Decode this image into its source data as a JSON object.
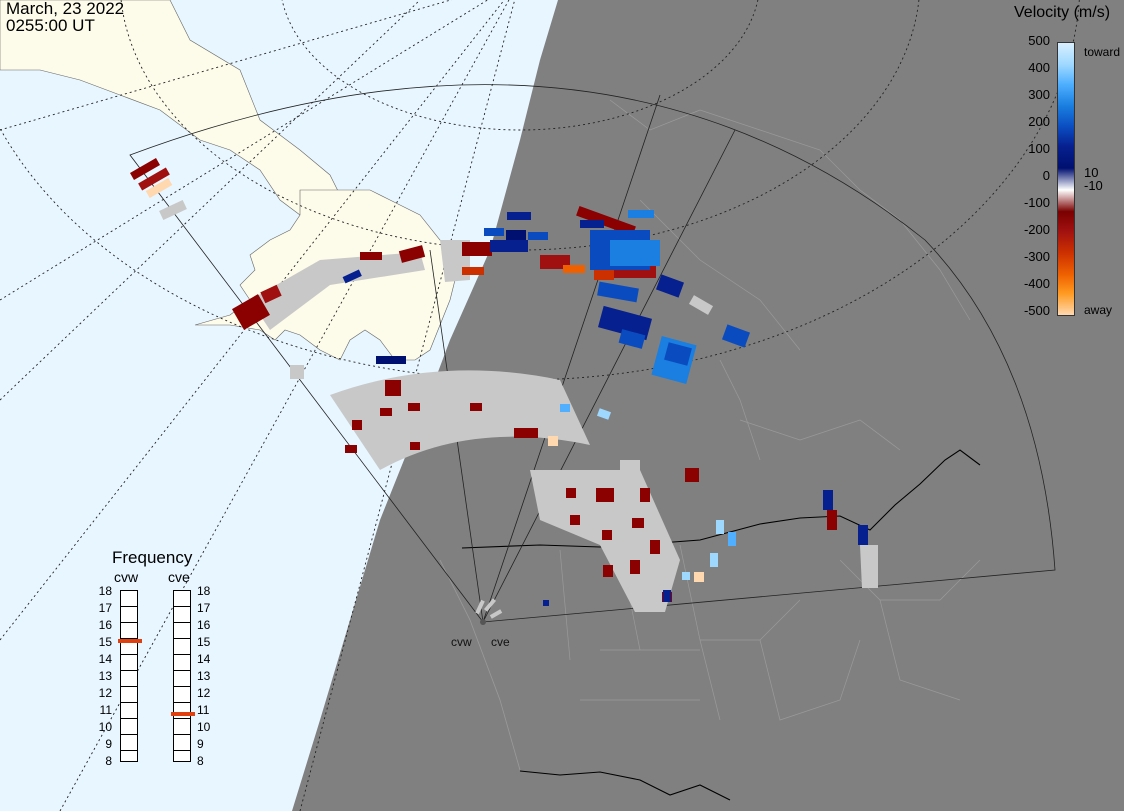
{
  "header": {
    "date": "March, 23 2022",
    "time": "0255:00 UT"
  },
  "legend": {
    "title": "Velocity (m/s)",
    "ticks": [
      "500",
      "400",
      "300",
      "200",
      "100",
      "10",
      "0",
      "-10",
      "-100",
      "-200",
      "-300",
      "-400",
      "-500"
    ],
    "toward_label": "toward",
    "away_label": "away",
    "colors": [
      "#d8f0ff",
      "#9ed8ff",
      "#50b0ff",
      "#1a7fe0",
      "#0a4cc0",
      "#06208f",
      "#001070",
      "#ffffff",
      "#7a0000",
      "#a01010",
      "#cc3000",
      "#ee6000",
      "#ff9a20",
      "#ffd8b0"
    ]
  },
  "frequency": {
    "title": "Frequency",
    "stations": [
      {
        "label": "cvw",
        "value": 15
      },
      {
        "label": "cve",
        "value": 10.7
      }
    ],
    "scale": [
      "18",
      "17",
      "16",
      "15",
      "14",
      "13",
      "12",
      "11",
      "10",
      "9",
      "8"
    ]
  },
  "map": {
    "station_labels": [
      "cvw",
      "cve"
    ],
    "land_color": "#808080",
    "ocean_color": "#e8f6ff",
    "daylight_land_color": "#fdfbe9",
    "ground_scatter_color": "#c8c8c8"
  }
}
